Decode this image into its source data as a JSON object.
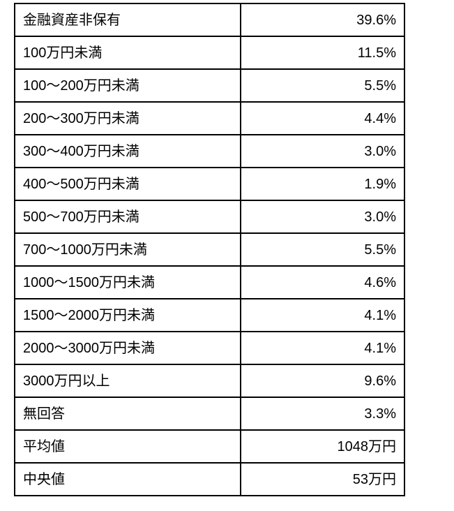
{
  "colors": {
    "text": "#000000",
    "border": "#000000",
    "background": "#ffffff"
  },
  "chart_data": {
    "type": "table",
    "grid": true,
    "rows": [
      {
        "label": "金融資産非保有",
        "value": "39.6%"
      },
      {
        "label": "100万円未満",
        "value": "11.5%"
      },
      {
        "label": "100～200万円未満",
        "value": "5.5%"
      },
      {
        "label": "200～300万円未満",
        "value": "4.4%"
      },
      {
        "label": "300～400万円未満",
        "value": "3.0%"
      },
      {
        "label": "400～500万円未満",
        "value": "1.9%"
      },
      {
        "label": "500～700万円未満",
        "value": "3.0%"
      },
      {
        "label": "700～1000万円未満",
        "value": "5.5%"
      },
      {
        "label": "1000～1500万円未満",
        "value": "4.6%"
      },
      {
        "label": "1500～2000万円未満",
        "value": "4.1%"
      },
      {
        "label": "2000～3000万円未満",
        "value": "4.1%"
      },
      {
        "label": "3000万円以上",
        "value": "9.6%"
      },
      {
        "label": "無回答",
        "value": "3.3%"
      },
      {
        "label": "平均値",
        "value": "1048万円"
      },
      {
        "label": "中央値",
        "value": "53万円"
      }
    ]
  }
}
